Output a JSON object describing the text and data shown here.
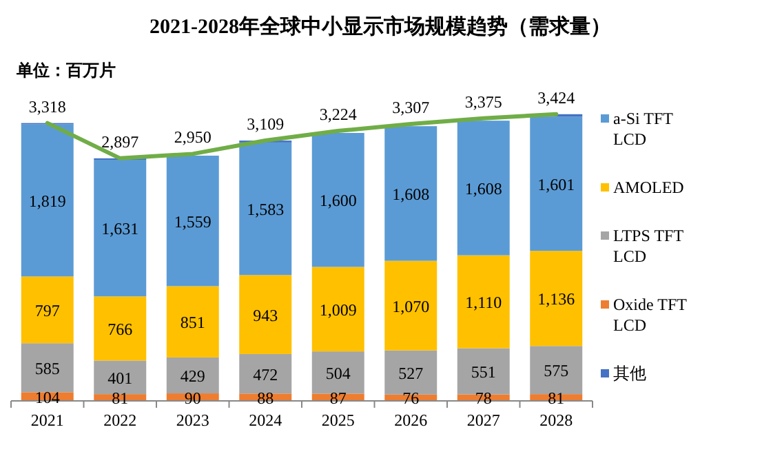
{
  "chart_data": {
    "type": "bar",
    "stacked": true,
    "title": "2021-2028年全球中小显示市场规模趋势（需求量）",
    "annotations": [
      "单位：百万片"
    ],
    "categories": [
      "2021",
      "2022",
      "2023",
      "2024",
      "2025",
      "2026",
      "2027",
      "2028"
    ],
    "legend": "right",
    "series": [
      {
        "name": "Oxide TFT LCD",
        "color": "#ed7d31",
        "values": [
          104,
          81,
          90,
          88,
          87,
          76,
          78,
          81
        ],
        "value_labels": [
          "104",
          "81",
          "90",
          "88",
          "87",
          "76",
          "78",
          "81"
        ]
      },
      {
        "name": "LTPS TFT LCD",
        "color": "#a5a5a5",
        "values": [
          585,
          401,
          429,
          472,
          504,
          527,
          551,
          575
        ],
        "value_labels": [
          "585",
          "401",
          "429",
          "472",
          "504",
          "527",
          "551",
          "575"
        ]
      },
      {
        "name": "AMOLED",
        "color": "#ffc000",
        "values": [
          797,
          766,
          851,
          943,
          1009,
          1070,
          1110,
          1136
        ],
        "value_labels": [
          "797",
          "766",
          "851",
          "943",
          "1,009",
          "1,070",
          "1,110",
          "1,136"
        ]
      },
      {
        "name": "a-Si TFT LCD",
        "color": "#5b9bd5",
        "values": [
          1819,
          1631,
          1559,
          1583,
          1600,
          1608,
          1608,
          1601
        ],
        "value_labels": [
          "1,819",
          "1,631",
          "1,559",
          "1,583",
          "1,600",
          "1,608",
          "1,608",
          "1,601"
        ]
      },
      {
        "name": "其他",
        "color": "#4472c4",
        "values": [
          13,
          18,
          null,
          23,
          null,
          null,
          null,
          31
        ]
      },
      {
        "type": "line",
        "color": "#70ad47",
        "values": [
          3318,
          2897,
          2950,
          3109,
          3224,
          3307,
          3375,
          3424
        ],
        "value_labels": [
          "3,318",
          "2,897",
          "2,950",
          "3,109",
          "3,224",
          "3,307",
          "3,375",
          "3,424"
        ]
      }
    ]
  }
}
